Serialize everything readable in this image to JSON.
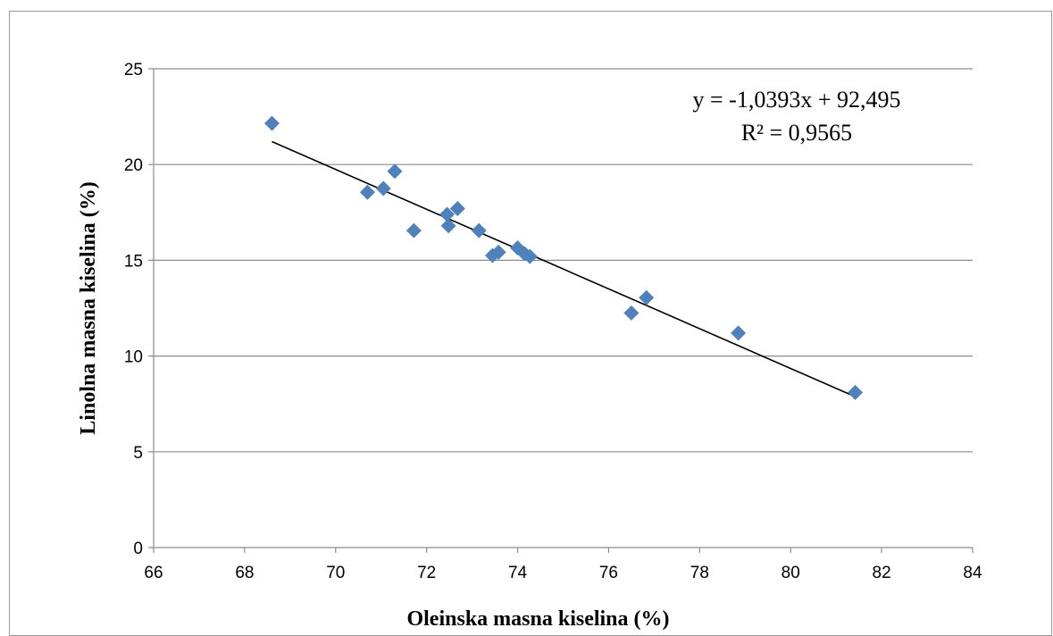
{
  "chart_data": {
    "type": "scatter",
    "title": "",
    "xlabel": "Oleinska masna kiselina (%)",
    "ylabel": "Linolna masna kiselina (%)",
    "xlim": [
      66,
      84
    ],
    "ylim": [
      0,
      25
    ],
    "x_ticks": [
      "66",
      "68",
      "70",
      "72",
      "74",
      "76",
      "78",
      "80",
      "82",
      "84"
    ],
    "y_ticks": [
      "0",
      "5",
      "10",
      "15",
      "20",
      "25"
    ],
    "grid": "horizontal",
    "legend": "none",
    "marker_color": "#4F81BD",
    "trendline_color": "#000000",
    "series": [
      {
        "points": [
          {
            "x": 68.6,
            "y": 22.15
          },
          {
            "x": 70.7,
            "y": 18.55
          },
          {
            "x": 71.05,
            "y": 18.75
          },
          {
            "x": 71.3,
            "y": 19.65
          },
          {
            "x": 71.72,
            "y": 16.55
          },
          {
            "x": 72.45,
            "y": 17.4
          },
          {
            "x": 72.48,
            "y": 16.8
          },
          {
            "x": 72.68,
            "y": 17.7
          },
          {
            "x": 73.15,
            "y": 16.55
          },
          {
            "x": 73.45,
            "y": 15.25
          },
          {
            "x": 73.58,
            "y": 15.42
          },
          {
            "x": 74.0,
            "y": 15.65
          },
          {
            "x": 74.15,
            "y": 15.35
          },
          {
            "x": 74.27,
            "y": 15.2
          },
          {
            "x": 76.5,
            "y": 12.25
          },
          {
            "x": 76.83,
            "y": 13.05
          },
          {
            "x": 78.85,
            "y": 11.2
          },
          {
            "x": 81.42,
            "y": 8.1
          }
        ]
      }
    ],
    "trendline": {
      "slope": -1.0393,
      "intercept": 92.495,
      "x_range": [
        68.6,
        81.42
      ],
      "equation_label": "y = -1,0393x + 92,495",
      "r2_label": "R² = 0,9565"
    }
  }
}
